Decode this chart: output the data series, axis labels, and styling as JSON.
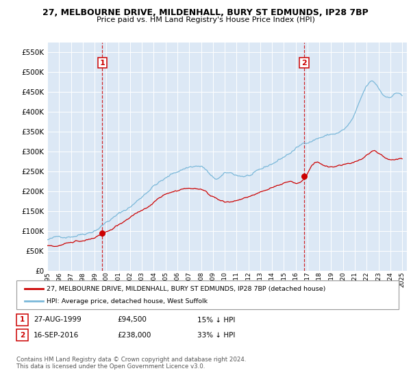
{
  "title": "27, MELBOURNE DRIVE, MILDENHALL, BURY ST EDMUNDS, IP28 7BP",
  "subtitle": "Price paid vs. HM Land Registry's House Price Index (HPI)",
  "ylim": [
    0,
    575000
  ],
  "yticks": [
    0,
    50000,
    100000,
    150000,
    200000,
    250000,
    300000,
    350000,
    400000,
    450000,
    500000,
    550000
  ],
  "ytick_labels": [
    "£0",
    "£50K",
    "£100K",
    "£150K",
    "£200K",
    "£250K",
    "£300K",
    "£350K",
    "£400K",
    "£450K",
    "£500K",
    "£550K"
  ],
  "sale1_year": 1999.65,
  "sale1_price": 94500,
  "sale1_label": "27-AUG-1999",
  "sale1_amount": "£94,500",
  "sale1_hpi": "15% ↓ HPI",
  "sale2_year": 2016.71,
  "sale2_price": 238000,
  "sale2_label": "16-SEP-2016",
  "sale2_amount": "£238,000",
  "sale2_hpi": "33% ↓ HPI",
  "hpi_color": "#7ab8d9",
  "price_color": "#cc0000",
  "background_color": "#dce8f5",
  "grid_color": "#ffffff",
  "legend_line1": "27, MELBOURNE DRIVE, MILDENHALL, BURY ST EDMUNDS, IP28 7BP (detached house)",
  "legend_line2": "HPI: Average price, detached house, West Suffolk",
  "footnote": "Contains HM Land Registry data © Crown copyright and database right 2024.\nThis data is licensed under the Open Government Licence v3.0."
}
